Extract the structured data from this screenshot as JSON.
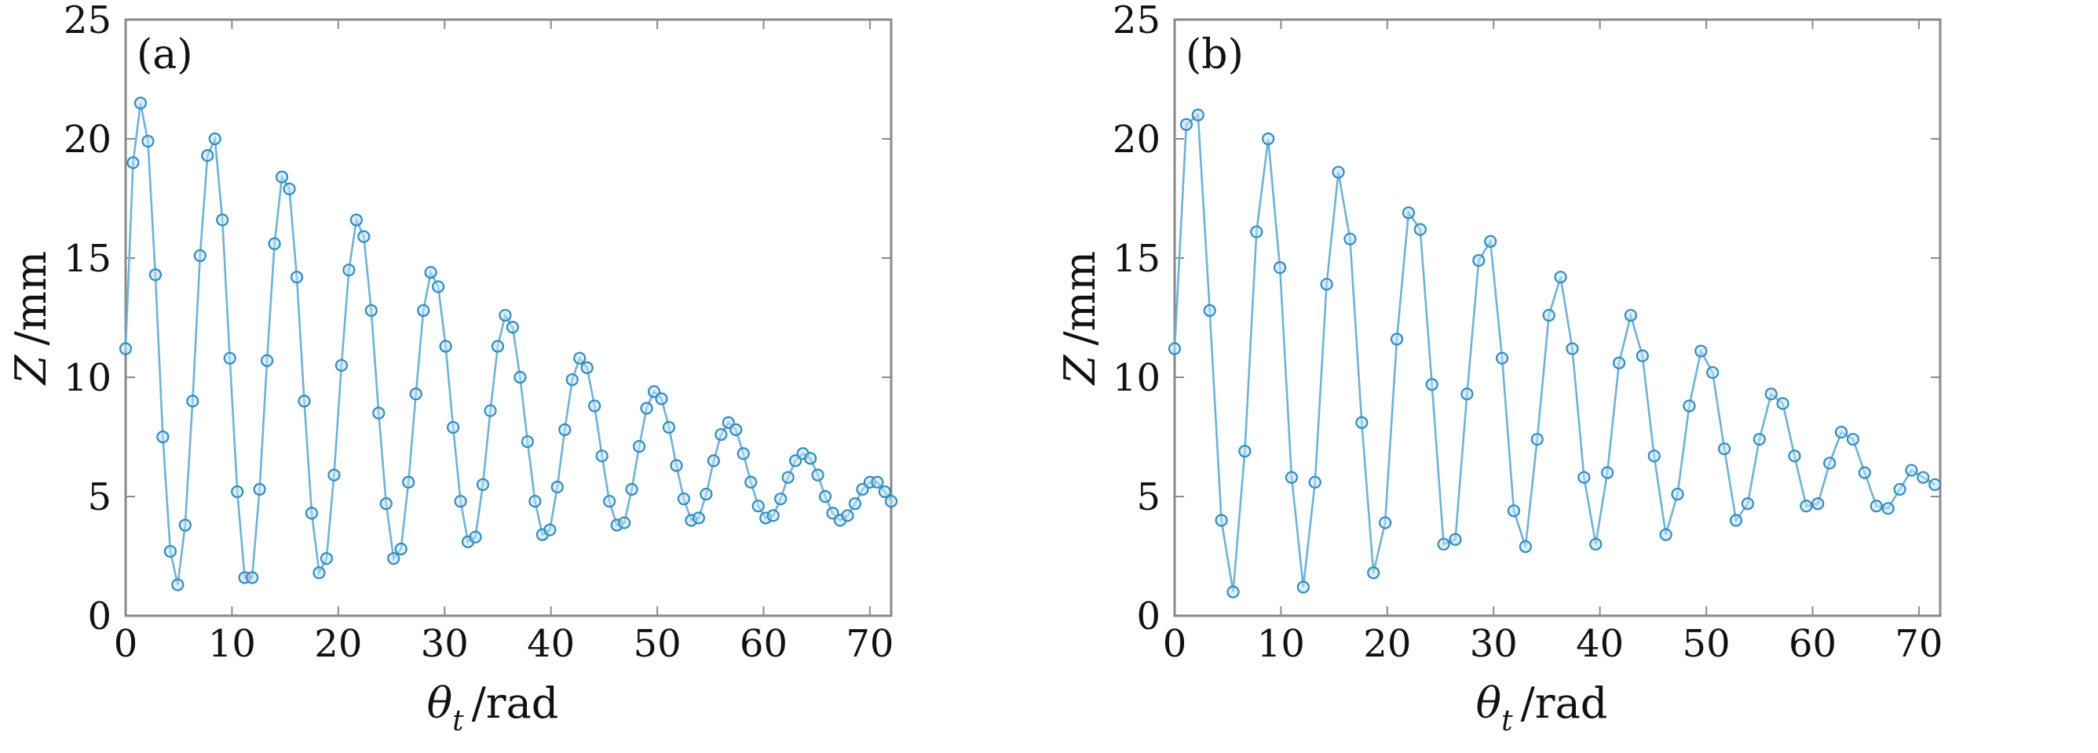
{
  "chart_data": [
    {
      "type": "line",
      "panel_label": "(a)",
      "xlabel_symbol": "θ",
      "xlabel_subscript": "t",
      "xlabel_unit": "/rad",
      "ylabel_symbol": "Z",
      "ylabel_unit": "/mm",
      "xlim": [
        0,
        72
      ],
      "ylim": [
        0,
        25
      ],
      "xticks": [
        0,
        10,
        20,
        30,
        40,
        50,
        60,
        70
      ],
      "yticks": [
        0,
        5,
        10,
        15,
        20,
        25
      ],
      "grid": false,
      "marker": "circle",
      "color": "#2f8cc0",
      "series": [
        {
          "x": [
            0.0,
            0.7,
            1.4,
            2.1,
            2.8,
            3.5,
            4.2,
            4.9,
            5.6,
            6.3,
            7.0,
            7.7,
            8.4,
            9.1,
            9.8,
            10.5,
            11.2,
            11.9,
            12.6,
            13.3,
            14.0,
            14.7,
            15.4,
            16.1,
            16.8,
            17.5,
            18.2,
            18.9,
            19.6,
            20.3,
            21.0,
            21.7,
            22.4,
            23.1,
            23.8,
            24.5,
            25.2,
            25.9,
            26.6,
            27.3,
            28.0,
            28.7,
            29.4,
            30.1,
            30.8,
            31.5,
            32.2,
            32.9,
            33.6,
            34.3,
            35.0,
            35.7,
            36.4,
            37.1,
            37.8,
            38.5,
            39.2,
            39.9,
            40.6,
            41.3,
            42.0,
            42.7,
            43.4,
            44.1,
            44.8,
            45.5,
            46.2,
            46.9,
            47.6,
            48.3,
            49.0,
            49.7,
            50.4,
            51.1,
            51.8,
            52.5,
            53.2,
            53.9,
            54.6,
            55.3,
            56.0,
            56.7,
            57.4,
            58.1,
            58.8,
            59.5,
            60.2,
            60.9,
            61.6,
            62.3,
            63.0,
            63.7,
            64.4,
            65.1,
            65.8,
            66.5,
            67.2,
            67.9,
            68.6,
            69.3,
            70.0,
            70.7,
            71.4,
            72.0
          ],
          "y": [
            11.2,
            19.0,
            21.5,
            19.9,
            14.3,
            7.5,
            2.7,
            1.3,
            3.8,
            9.0,
            15.1,
            19.3,
            20.0,
            16.6,
            10.8,
            5.2,
            1.6,
            1.6,
            5.3,
            10.7,
            15.6,
            18.4,
            17.9,
            14.2,
            9.0,
            4.3,
            1.8,
            2.4,
            5.9,
            10.5,
            14.5,
            16.6,
            15.9,
            12.8,
            8.5,
            4.7,
            2.4,
            2.8,
            5.6,
            9.3,
            12.8,
            14.4,
            13.8,
            11.3,
            7.9,
            4.8,
            3.1,
            3.3,
            5.5,
            8.6,
            11.3,
            12.6,
            12.1,
            10.0,
            7.3,
            4.8,
            3.4,
            3.6,
            5.4,
            7.8,
            9.9,
            10.8,
            10.4,
            8.8,
            6.7,
            4.8,
            3.8,
            3.9,
            5.3,
            7.1,
            8.7,
            9.4,
            9.1,
            7.9,
            6.3,
            4.9,
            4.0,
            4.1,
            5.1,
            6.5,
            7.6,
            8.1,
            7.8,
            6.8,
            5.6,
            4.6,
            4.1,
            4.2,
            4.9,
            5.8,
            6.5,
            6.8,
            6.6,
            5.9,
            5.0,
            4.3,
            4.0,
            4.2,
            4.7,
            5.3,
            5.6,
            5.6,
            5.2,
            4.8
          ]
        }
      ]
    },
    {
      "type": "line",
      "panel_label": "(b)",
      "xlabel_symbol": "θ",
      "xlabel_subscript": "t",
      "xlabel_unit": "/rad",
      "ylabel_symbol": "Z",
      "ylabel_unit": "/mm",
      "xlim": [
        0,
        72
      ],
      "ylim": [
        0,
        25
      ],
      "xticks": [
        0,
        10,
        20,
        30,
        40,
        50,
        60,
        70
      ],
      "yticks": [
        0,
        5,
        10,
        15,
        20,
        25
      ],
      "grid": false,
      "marker": "circle",
      "color": "#2f8cc0",
      "series": [
        {
          "x": [
            0.0,
            1.1,
            2.2,
            3.3,
            4.4,
            5.5,
            6.6,
            7.7,
            8.8,
            9.9,
            11.0,
            12.1,
            13.2,
            14.3,
            15.4,
            16.5,
            17.6,
            18.7,
            19.8,
            20.9,
            22.0,
            23.1,
            24.2,
            25.3,
            26.4,
            27.5,
            28.6,
            29.7,
            30.8,
            31.9,
            33.0,
            34.1,
            35.2,
            36.3,
            37.4,
            38.5,
            39.6,
            40.7,
            41.8,
            42.9,
            44.0,
            45.1,
            46.2,
            47.3,
            48.4,
            49.5,
            50.6,
            51.7,
            52.8,
            53.9,
            55.0,
            56.1,
            57.2,
            58.3,
            59.4,
            60.5,
            61.6,
            62.7,
            63.8,
            64.9,
            66.0,
            67.1,
            68.2,
            69.3,
            70.4,
            71.5
          ],
          "y": [
            11.2,
            20.6,
            21.0,
            12.8,
            4.0,
            1.0,
            6.9,
            16.1,
            20.0,
            14.6,
            5.8,
            1.2,
            5.6,
            13.9,
            18.6,
            15.8,
            8.1,
            1.8,
            3.9,
            11.6,
            16.9,
            16.2,
            9.7,
            3.0,
            3.2,
            9.3,
            14.9,
            15.7,
            10.8,
            4.4,
            2.9,
            7.4,
            12.6,
            14.2,
            11.2,
            5.8,
            3.0,
            6.0,
            10.6,
            12.6,
            10.9,
            6.7,
            3.4,
            5.1,
            8.8,
            11.1,
            10.2,
            7.0,
            4.0,
            4.7,
            7.4,
            9.3,
            8.9,
            6.7,
            4.6,
            4.7,
            6.4,
            7.7,
            7.4,
            6.0,
            4.6,
            4.5,
            5.3,
            6.1,
            5.8,
            5.5
          ]
        }
      ]
    }
  ]
}
